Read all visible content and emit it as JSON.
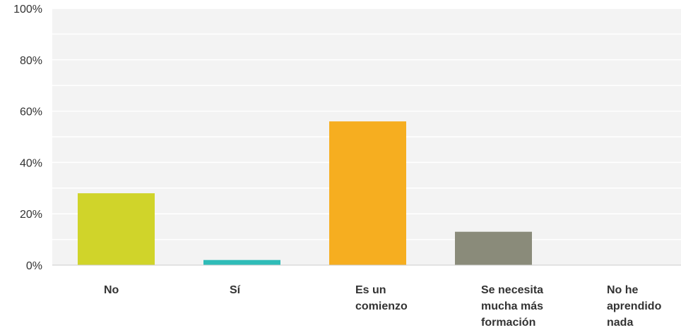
{
  "chart_data": {
    "type": "bar",
    "categories": [
      [
        "No"
      ],
      [
        "Sí"
      ],
      [
        "Es un",
        "comienzo"
      ],
      [
        "Se necesita",
        "mucha más",
        "formación"
      ],
      [
        "No he",
        "aprendido",
        "nada"
      ]
    ],
    "values": [
      28,
      2,
      56,
      13,
      0
    ],
    "unit": "%",
    "ylim": [
      0,
      100
    ],
    "yticks": [
      "0%",
      "20%",
      "40%",
      "60%",
      "80%",
      "100%"
    ],
    "grid": true,
    "legend": "none",
    "colors": {
      "bars": [
        "#d0d42a",
        "#2fbcb8",
        "#f6ae20",
        "#8a8b7a",
        "#ccc0a2"
      ],
      "plot_background": "#f3f3f3",
      "gridline": "#ffffff",
      "axis": "#cccccc",
      "text": "#333333"
    }
  }
}
